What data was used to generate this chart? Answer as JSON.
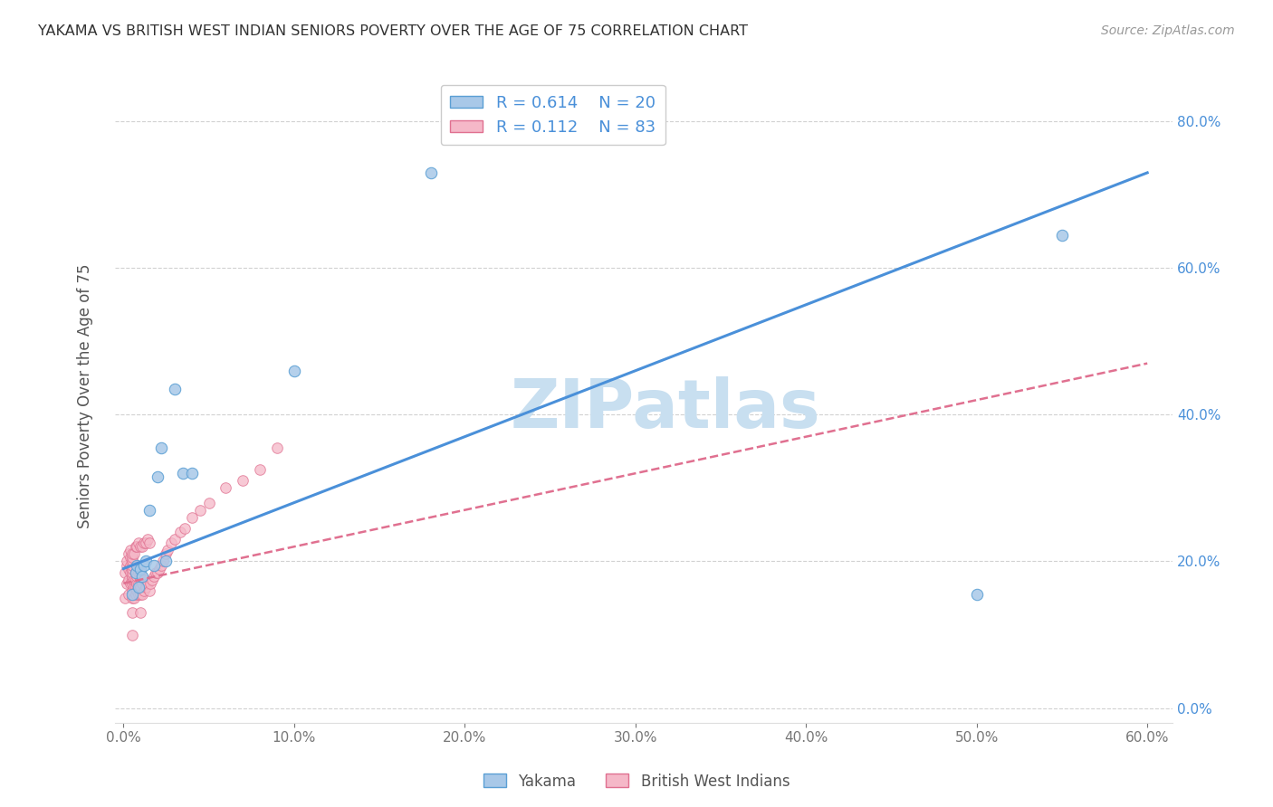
{
  "title": "YAKAMA VS BRITISH WEST INDIAN SENIORS POVERTY OVER THE AGE OF 75 CORRELATION CHART",
  "source": "Source: ZipAtlas.com",
  "ylabel": "Seniors Poverty Over the Age of 75",
  "yakama_R": 0.614,
  "yakama_N": 20,
  "bwi_R": 0.112,
  "bwi_N": 83,
  "yakama_color": "#a8c8e8",
  "yakama_edge_color": "#5a9fd4",
  "yakama_line_color": "#4a90d9",
  "bwi_color": "#f5b8c8",
  "bwi_edge_color": "#e07090",
  "bwi_line_color": "#e07090",
  "watermark": "ZIPatlas",
  "watermark_color": "#c8dff0",
  "background_color": "#ffffff",
  "xlim": [
    -0.005,
    0.615
  ],
  "ylim": [
    -0.02,
    0.87
  ],
  "xtick_vals": [
    0.0,
    0.1,
    0.2,
    0.3,
    0.4,
    0.5,
    0.6
  ],
  "ytick_vals": [
    0.0,
    0.2,
    0.4,
    0.6,
    0.8
  ],
  "yakama_trendline": [
    0.0,
    0.6,
    0.19,
    0.73
  ],
  "bwi_trendline": [
    0.0,
    0.6,
    0.17,
    0.47
  ],
  "yakama_x": [
    0.005,
    0.007,
    0.008,
    0.009,
    0.01,
    0.011,
    0.012,
    0.013,
    0.015,
    0.018,
    0.02,
    0.022,
    0.025,
    0.03,
    0.035,
    0.04,
    0.1,
    0.18,
    0.5,
    0.55
  ],
  "yakama_y": [
    0.155,
    0.185,
    0.195,
    0.165,
    0.19,
    0.18,
    0.195,
    0.2,
    0.27,
    0.195,
    0.315,
    0.355,
    0.2,
    0.435,
    0.32,
    0.32,
    0.46,
    0.73,
    0.155,
    0.645
  ],
  "bwi_x": [
    0.001,
    0.001,
    0.002,
    0.002,
    0.002,
    0.003,
    0.003,
    0.003,
    0.003,
    0.004,
    0.004,
    0.004,
    0.004,
    0.004,
    0.005,
    0.005,
    0.005,
    0.005,
    0.005,
    0.005,
    0.005,
    0.005,
    0.005,
    0.005,
    0.005,
    0.005,
    0.005,
    0.006,
    0.006,
    0.006,
    0.006,
    0.007,
    0.007,
    0.007,
    0.007,
    0.007,
    0.008,
    0.008,
    0.008,
    0.008,
    0.009,
    0.009,
    0.009,
    0.009,
    0.01,
    0.01,
    0.01,
    0.01,
    0.01,
    0.01,
    0.011,
    0.011,
    0.011,
    0.012,
    0.012,
    0.012,
    0.013,
    0.013,
    0.014,
    0.014,
    0.015,
    0.015,
    0.016,
    0.017,
    0.018,
    0.019,
    0.02,
    0.021,
    0.022,
    0.023,
    0.025,
    0.026,
    0.028,
    0.03,
    0.033,
    0.036,
    0.04,
    0.045,
    0.05,
    0.06,
    0.07,
    0.08,
    0.09
  ],
  "bwi_y": [
    0.15,
    0.185,
    0.17,
    0.195,
    0.2,
    0.155,
    0.175,
    0.19,
    0.21,
    0.17,
    0.185,
    0.195,
    0.205,
    0.215,
    0.1,
    0.13,
    0.15,
    0.16,
    0.17,
    0.175,
    0.18,
    0.185,
    0.19,
    0.195,
    0.2,
    0.205,
    0.21,
    0.15,
    0.165,
    0.175,
    0.21,
    0.155,
    0.165,
    0.175,
    0.185,
    0.22,
    0.16,
    0.17,
    0.18,
    0.22,
    0.155,
    0.17,
    0.185,
    0.225,
    0.13,
    0.155,
    0.165,
    0.175,
    0.185,
    0.22,
    0.155,
    0.17,
    0.22,
    0.16,
    0.175,
    0.225,
    0.165,
    0.225,
    0.17,
    0.23,
    0.16,
    0.225,
    0.17,
    0.175,
    0.18,
    0.185,
    0.185,
    0.19,
    0.195,
    0.2,
    0.21,
    0.215,
    0.225,
    0.23,
    0.24,
    0.245,
    0.26,
    0.27,
    0.28,
    0.3,
    0.31,
    0.325,
    0.355
  ]
}
